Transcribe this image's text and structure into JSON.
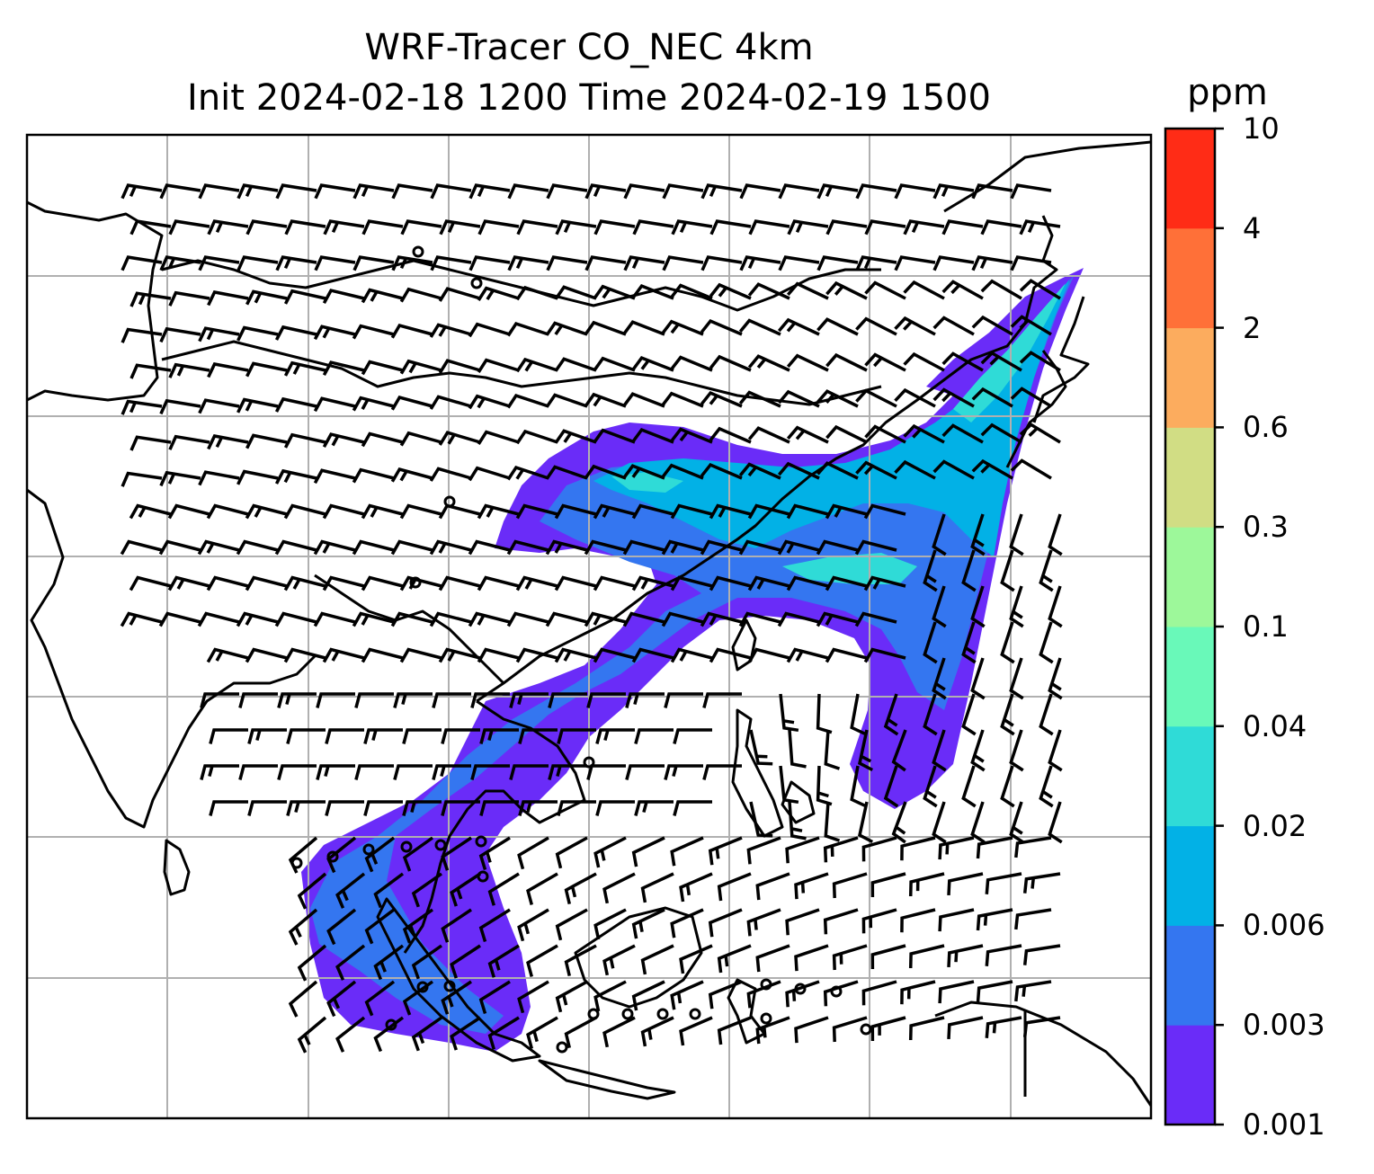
{
  "figure": {
    "title_line1": "WRF-Tracer CO_NEC 4km",
    "title_line2": "Init 2024-02-18 1200 Time 2024-02-19 1500",
    "product": "WRF-Tracer",
    "tracer": "CO_NEC",
    "resolution": "4km",
    "init_time": "2024-02-18 1200",
    "valid_time": "2024-02-19 1500"
  },
  "map": {
    "coastline_color": "#000000",
    "gridline_color": "#b0b0b0",
    "background": "#ffffff",
    "gridlines": true,
    "overlay": "wind barbs",
    "barb_color": "#000000"
  },
  "colorbar": {
    "unit": "ppm",
    "levels": [
      "0.001",
      "0.003",
      "0.006",
      "0.02",
      "0.04",
      "0.1",
      "0.3",
      "0.6",
      "2",
      "4",
      "10"
    ],
    "colors": [
      "#6a2cf8",
      "#3476f0",
      "#02b1e6",
      "#2fdbd7",
      "#69f9b9",
      "#9df89a",
      "#d1dd84",
      "#fcac5e",
      "#ff7038",
      "#ff2c16"
    ]
  }
}
